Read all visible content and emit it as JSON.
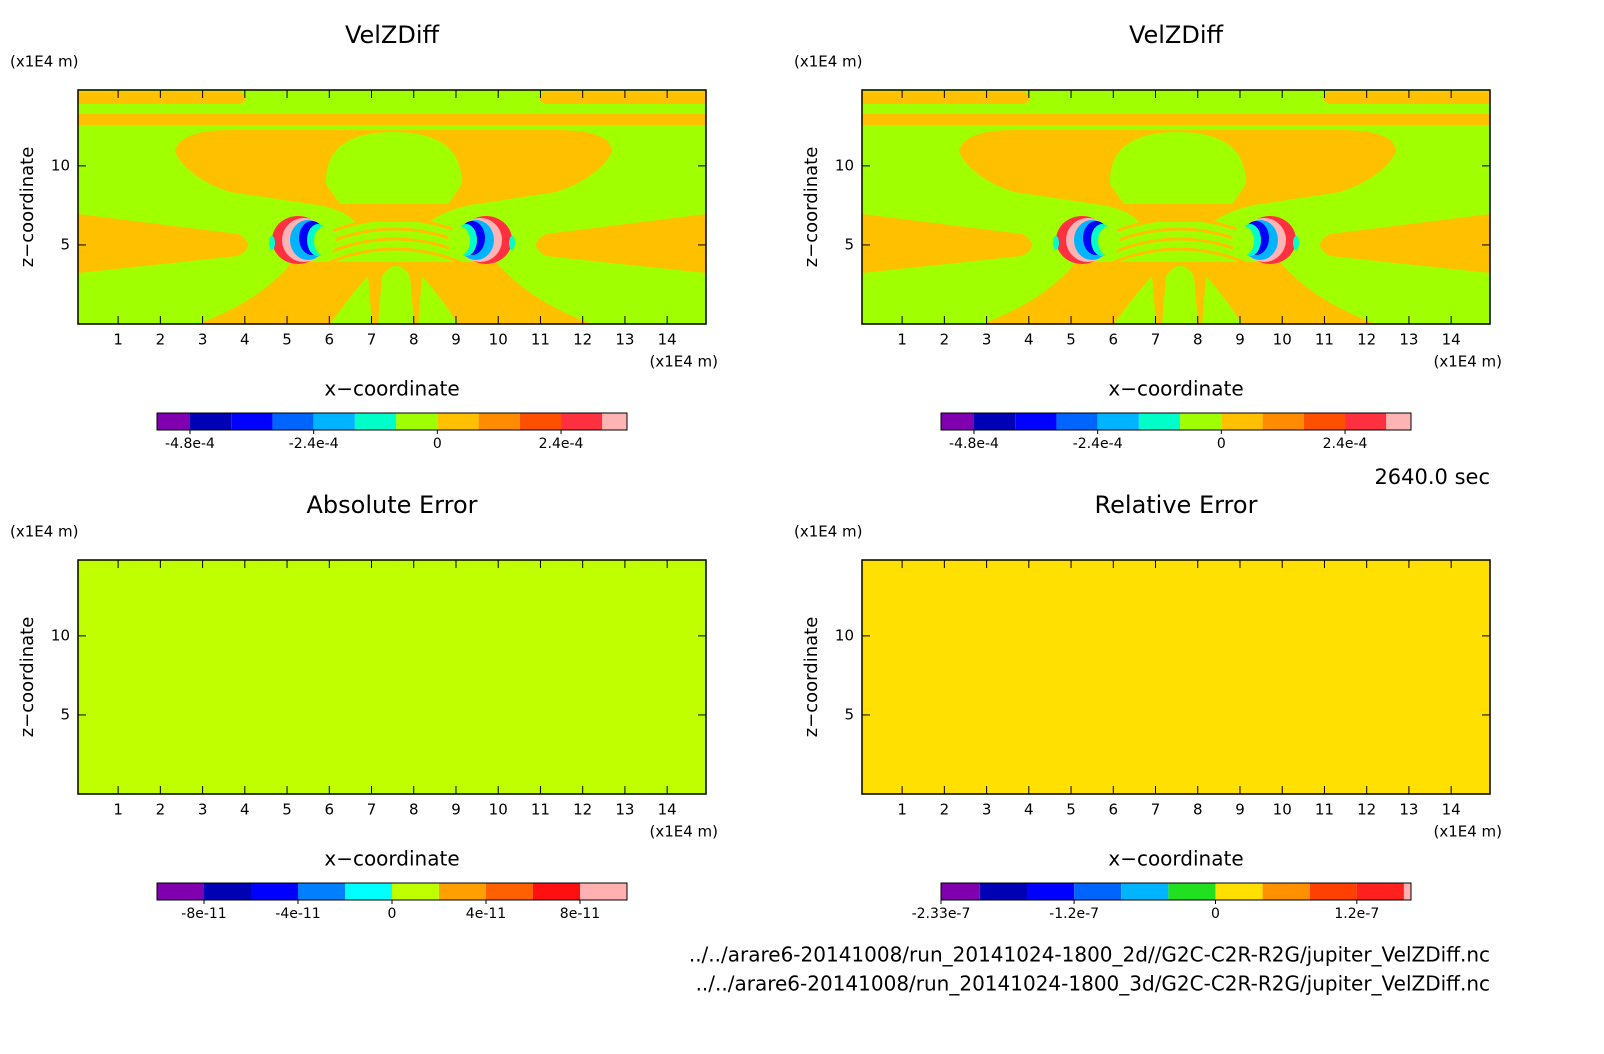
{
  "chart_data": [
    {
      "type": "contour",
      "title": "VelZDiff",
      "xlabel": "x−coordinate",
      "ylabel": "z−coordinate",
      "x_unit": "(x1E4 m)",
      "y_unit": "(x1E4 m)",
      "xlim": [
        0.05,
        14.92
      ],
      "ylim": [
        0,
        14.8
      ],
      "xticks": [
        1,
        2,
        3,
        4,
        5,
        6,
        7,
        8,
        9,
        10,
        11,
        12,
        13,
        14
      ],
      "yticks": [
        5,
        10
      ],
      "colorbar": {
        "levels": [
          -0.000544,
          -0.00048,
          -0.0004,
          -0.00032,
          -0.00024,
          -0.00016,
          -8e-05,
          0,
          8e-05,
          0.00016,
          0.00024,
          0.00032,
          0.000368
        ],
        "colors": [
          "#8000b0",
          "#0000b4",
          "#0000ff",
          "#0064ff",
          "#00b4ff",
          "#00ffc8",
          "#a0ff00",
          "#ffc000",
          "#ff8c00",
          "#ff5000",
          "#ff3040",
          "#ffb4b4"
        ],
        "ticks": [
          {
            "value": -0.00048,
            "label": "-4.8e-4"
          },
          {
            "value": -0.00024,
            "label": "-2.4e-4"
          },
          0,
          {
            "value": 0.00024,
            "label": "2.4e-4"
          }
        ]
      }
    },
    {
      "type": "contour",
      "title": "VelZDiff",
      "xlabel": "x−coordinate",
      "ylabel": "z−coordinate",
      "x_unit": "(x1E4 m)",
      "y_unit": "(x1E4 m)",
      "xlim": [
        0.05,
        14.92
      ],
      "ylim": [
        0,
        14.8
      ],
      "xticks": [
        1,
        2,
        3,
        4,
        5,
        6,
        7,
        8,
        9,
        10,
        11,
        12,
        13,
        14
      ],
      "yticks": [
        5,
        10
      ],
      "colorbar": {
        "levels": [
          -0.000544,
          -0.00048,
          -0.0004,
          -0.00032,
          -0.00024,
          -0.00016,
          -8e-05,
          0,
          8e-05,
          0.00016,
          0.00024,
          0.00032,
          0.000368
        ],
        "colors": [
          "#8000b0",
          "#0000b4",
          "#0000ff",
          "#0064ff",
          "#00b4ff",
          "#00ffc8",
          "#a0ff00",
          "#ffc000",
          "#ff8c00",
          "#ff5000",
          "#ff3040",
          "#ffb4b4"
        ],
        "ticks": [
          {
            "value": -0.00048,
            "label": "-4.8e-4"
          },
          {
            "value": -0.00024,
            "label": "-2.4e-4"
          },
          0,
          {
            "value": 0.00024,
            "label": "2.4e-4"
          }
        ]
      }
    },
    {
      "type": "contour",
      "title": "Absolute Error",
      "xlabel": "x−coordinate",
      "ylabel": "z−coordinate",
      "x_unit": "(x1E4 m)",
      "y_unit": "(x1E4 m)",
      "xlim": [
        0.05,
        14.92
      ],
      "ylim": [
        0,
        14.8
      ],
      "xticks": [
        1,
        2,
        3,
        4,
        5,
        6,
        7,
        8,
        9,
        10,
        11,
        12,
        13,
        14
      ],
      "yticks": [
        5,
        10
      ],
      "colorbar": {
        "levels": [
          -1e-10,
          -8e-11,
          -6e-11,
          -4e-11,
          -2e-11,
          0,
          2e-11,
          4e-11,
          6e-11,
          8e-11,
          1e-10
        ],
        "colors": [
          "#8000b0",
          "#0000b4",
          "#0000ff",
          "#0080ff",
          "#00ffff",
          "#c0ff00",
          "#ffa000",
          "#ff6000",
          "#ff1010",
          "#ffb0b0"
        ],
        "ticks": [
          {
            "value": -8e-11,
            "label": "-8e-11"
          },
          {
            "value": -4e-11,
            "label": "-4e-11"
          },
          0,
          {
            "value": 4e-11,
            "label": "4e-11"
          },
          {
            "value": 8e-11,
            "label": "8e-11"
          }
        ]
      }
    },
    {
      "type": "contour",
      "title": "Relative Error",
      "xlabel": "x−coordinate",
      "ylabel": "z−coordinate",
      "x_unit": "(x1E4 m)",
      "y_unit": "(x1E4 m)",
      "xlim": [
        0.05,
        14.92
      ],
      "ylim": [
        0,
        14.8
      ],
      "xticks": [
        1,
        2,
        3,
        4,
        5,
        6,
        7,
        8,
        9,
        10,
        11,
        12,
        13,
        14
      ],
      "yticks": [
        5,
        10
      ],
      "colorbar": {
        "levels": [
          -2.33e-07,
          -2e-07,
          -1.6e-07,
          -1.2e-07,
          -8e-08,
          -4e-08,
          0,
          4e-08,
          8e-08,
          1.2e-07,
          1.6e-07,
          1.66e-07
        ],
        "colors": [
          "#8000b0",
          "#0000b4",
          "#0000ff",
          "#0064ff",
          "#00b4ff",
          "#20e020",
          "#ffe000",
          "#ff9000",
          "#ff4000",
          "#ff2020",
          "#ffb0b0"
        ],
        "ticks": [
          {
            "value": -2.33e-07,
            "label": "-2.33e-7"
          },
          {
            "value": -1.2e-07,
            "label": "-1.2e-7"
          },
          0,
          {
            "value": 1.2e-07,
            "label": "1.2e-7"
          }
        ]
      }
    }
  ],
  "time_label": "2640.0 sec",
  "files": [
    "../../arare6-20141008/run_20141024-1800_2d//G2C-C2R-R2G/jupiter_VelZDiff.nc",
    "../../arare6-20141008/run_20141024-1800_3d/G2C-C2R-R2G/jupiter_VelZDiff.nc"
  ]
}
